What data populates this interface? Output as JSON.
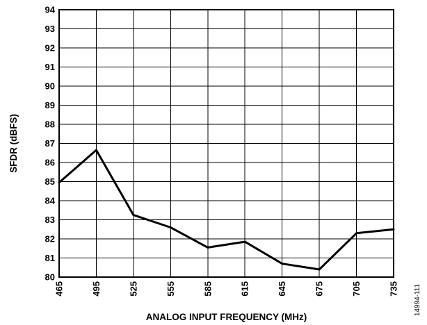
{
  "chart_data": {
    "type": "line",
    "title": "",
    "xlabel": "ANALOG INPUT FREQUENCY (MHz)",
    "ylabel": "SFDR (dBFS)",
    "x_ticks": [
      "465",
      "495",
      "525",
      "555",
      "585",
      "615",
      "645",
      "675",
      "705",
      "735"
    ],
    "y_ticks": [
      "80",
      "81",
      "82",
      "83",
      "84",
      "85",
      "86",
      "87",
      "88",
      "89",
      "90",
      "91",
      "92",
      "93",
      "94"
    ],
    "xlim": [
      465,
      735
    ],
    "ylim": [
      80,
      94
    ],
    "grid": true,
    "legend": "none",
    "series": [
      {
        "color": "#000000",
        "x": [
          465,
          495,
          525,
          555,
          585,
          615,
          645,
          675,
          705,
          735
        ],
        "y": [
          84.95,
          86.65,
          83.25,
          82.6,
          81.55,
          81.85,
          80.7,
          80.4,
          82.3,
          82.5
        ]
      }
    ]
  },
  "figure_id": "14994-111"
}
